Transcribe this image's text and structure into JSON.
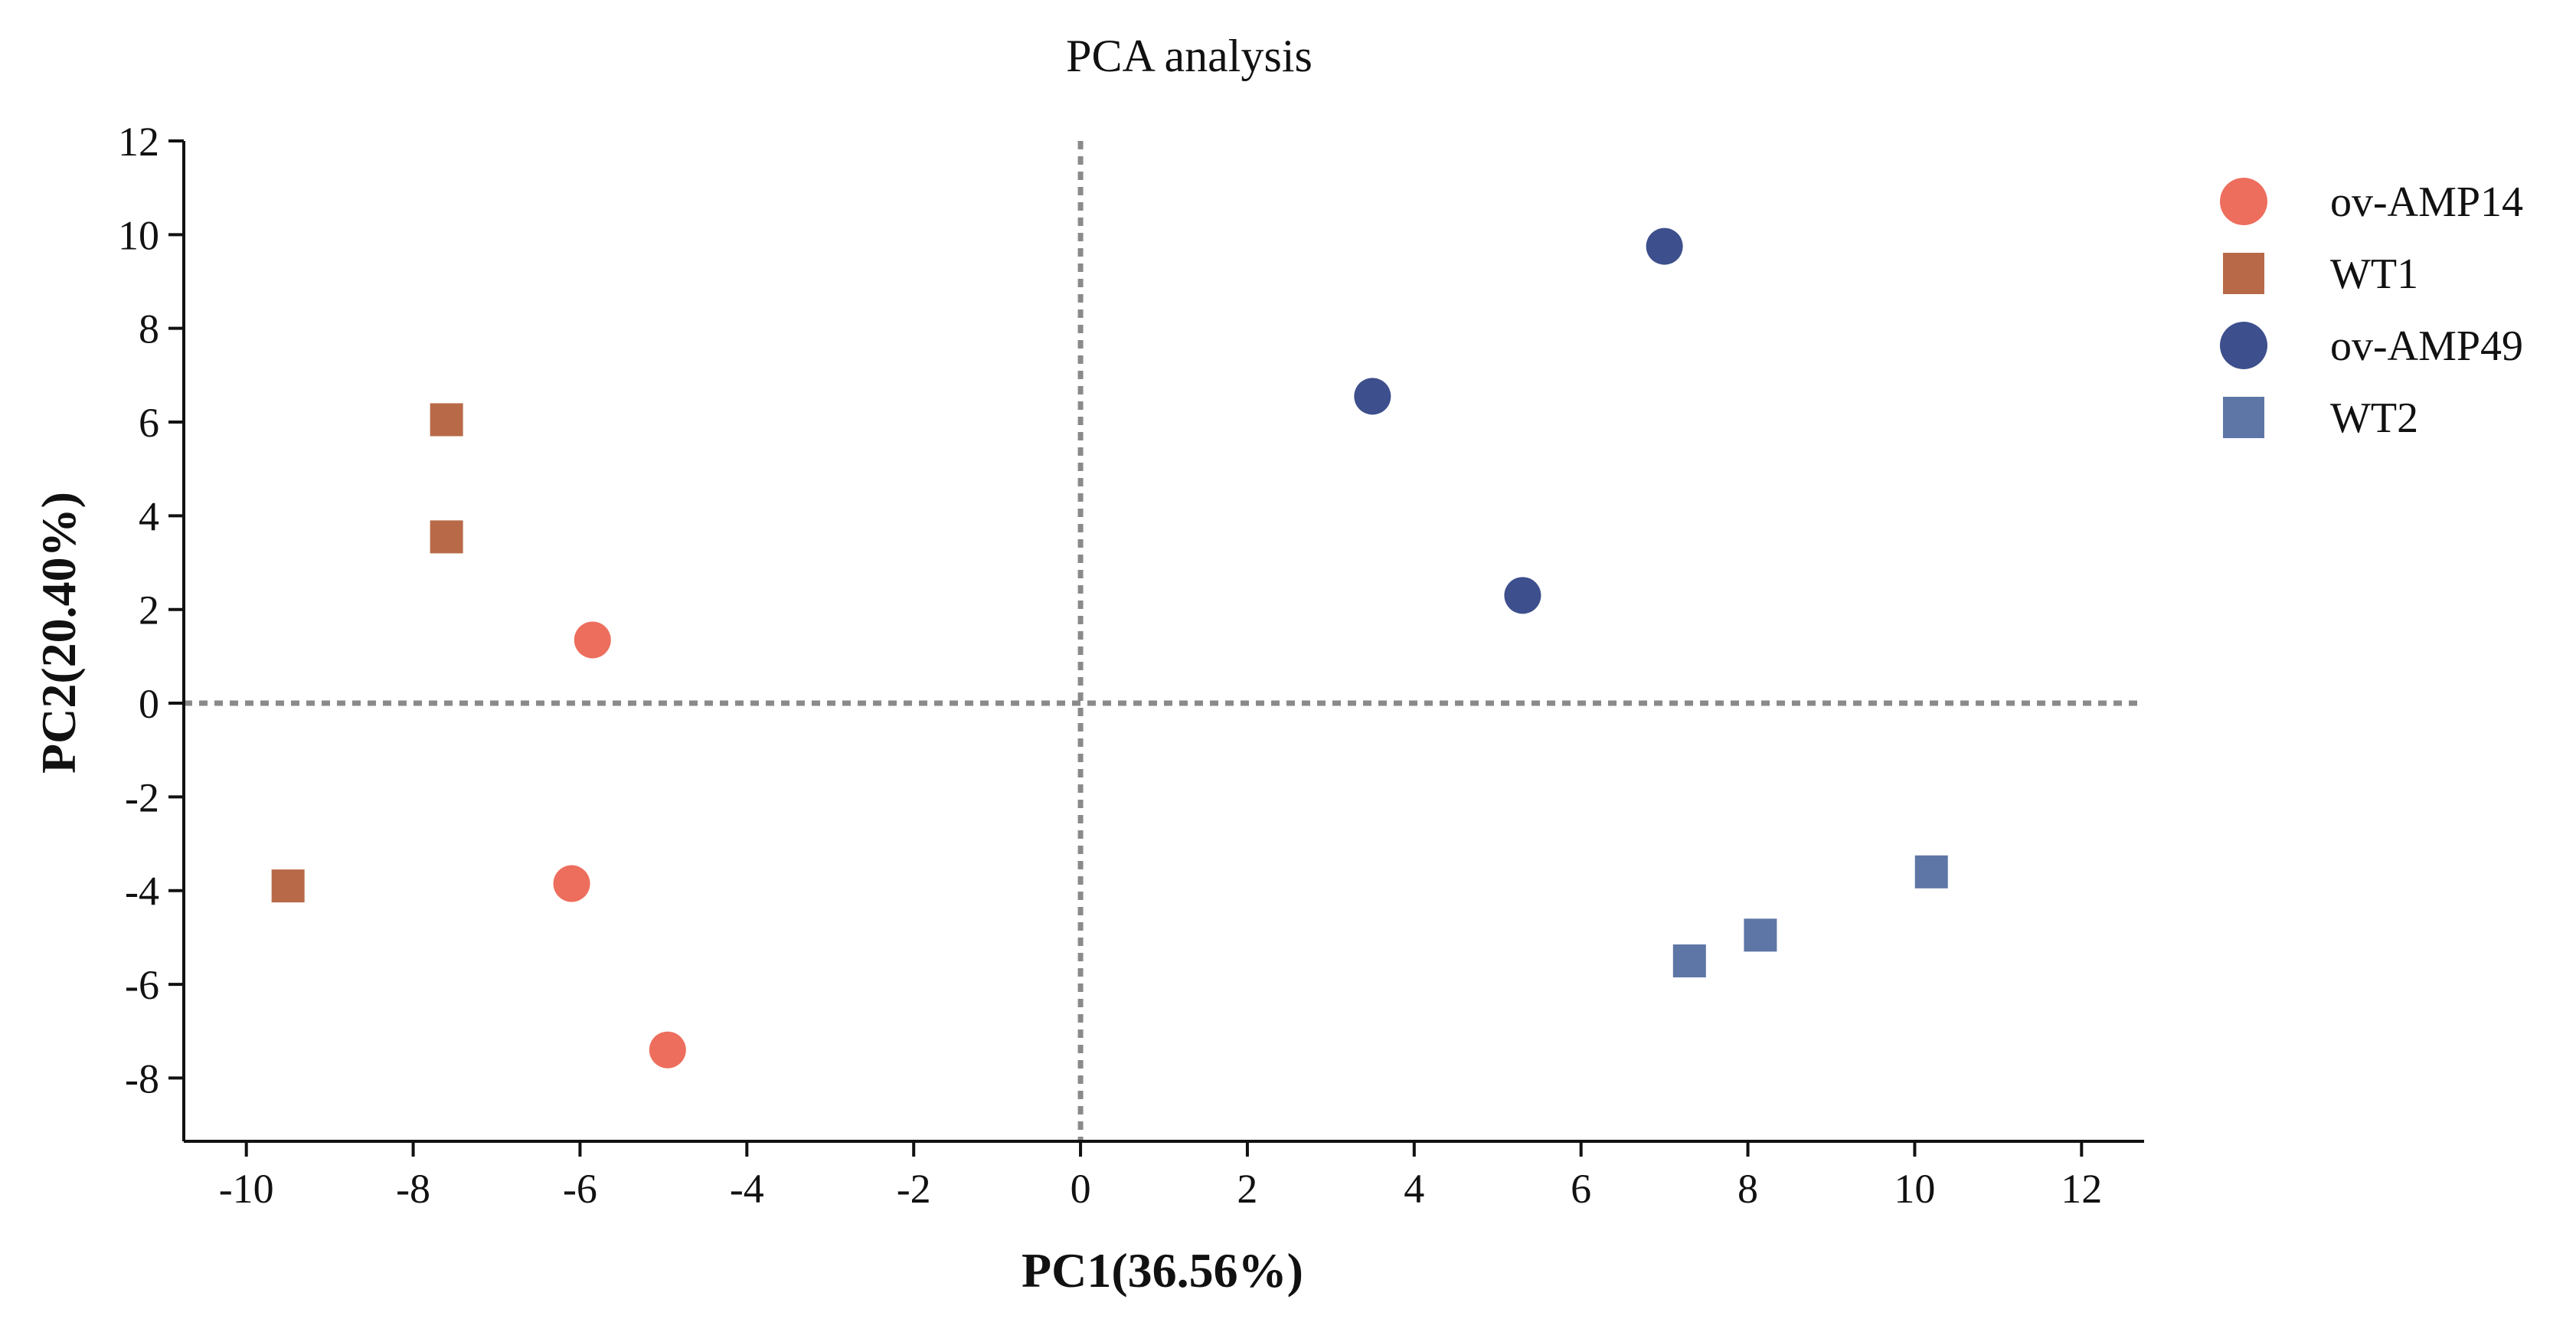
{
  "chart_data": {
    "type": "scatter",
    "title": "PCA analysis",
    "xlabel": "PC1(36.56%)",
    "ylabel": "PC2(20.40%)",
    "xlim": [
      -10.75,
      12.75
    ],
    "ylim": [
      -9.35,
      12.0
    ],
    "xticks": [
      -10,
      -8,
      -6,
      -4,
      -2,
      0,
      2,
      4,
      6,
      8,
      10,
      12
    ],
    "yticks": [
      -8,
      -6,
      -4,
      -2,
      0,
      2,
      4,
      6,
      8,
      10,
      12
    ],
    "reference_lines": {
      "x": 0,
      "y": 0,
      "style": "dotted"
    },
    "grid": false,
    "legend_position": "top-right",
    "series": [
      {
        "name": "ov-AMP14",
        "marker": "circle",
        "color": "#ed6e5d",
        "points": [
          [
            -5.85,
            1.35
          ],
          [
            -6.1,
            -3.85
          ],
          [
            -4.95,
            -7.4
          ]
        ]
      },
      {
        "name": "WT1",
        "marker": "square",
        "color": "#b86a48",
        "points": [
          [
            -7.6,
            6.05
          ],
          [
            -7.6,
            3.55
          ],
          [
            -9.5,
            -3.9
          ]
        ]
      },
      {
        "name": "ov-AMP49",
        "marker": "circle",
        "color": "#3d4f8c",
        "points": [
          [
            7.0,
            9.75
          ],
          [
            3.5,
            6.55
          ],
          [
            5.3,
            2.3
          ]
        ]
      },
      {
        "name": "WT2",
        "marker": "square",
        "color": "#5e76a6",
        "points": [
          [
            10.2,
            -3.6
          ],
          [
            8.15,
            -4.95
          ],
          [
            7.3,
            -5.5
          ]
        ]
      }
    ]
  }
}
